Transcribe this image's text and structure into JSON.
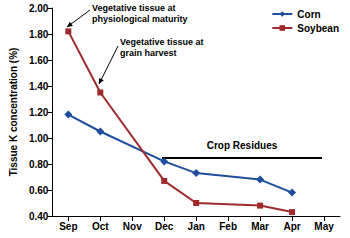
{
  "chart_data": {
    "type": "line",
    "y_label": "Tissue K concentration (%)",
    "categories": [
      "Sep",
      "Oct",
      "Nov",
      "Dec",
      "Jan",
      "Feb",
      "Mar",
      "Apr",
      "May"
    ],
    "series": [
      {
        "name": "Corn",
        "color": "#1f4e9c",
        "marker": "diamond",
        "values": [
          1.18,
          1.05,
          null,
          0.82,
          0.73,
          null,
          0.68,
          0.58,
          null
        ]
      },
      {
        "name": "Soybean",
        "color": "#9e2a2b",
        "marker": "square",
        "values": [
          1.82,
          1.35,
          null,
          0.67,
          0.5,
          null,
          0.48,
          0.43,
          null
        ]
      }
    ],
    "ylim": [
      0.4,
      2.0
    ],
    "yticks": [
      {
        "value": 0.4,
        "label": "0.40"
      },
      {
        "value": 0.6,
        "label": "0.60"
      },
      {
        "value": 0.8,
        "label": "0.80"
      },
      {
        "value": 1.0,
        "label": "1.00"
      },
      {
        "value": 1.2,
        "label": "1.20"
      },
      {
        "value": 1.4,
        "label": "1.40"
      },
      {
        "value": 1.6,
        "label": "1.60"
      },
      {
        "value": 1.8,
        "label": "1.80"
      },
      {
        "value": 2.0,
        "label": "2.00"
      }
    ],
    "annotations": [
      "Vegetative tissue at physiological maturity",
      "Vegetative tissue at grain harvest",
      "Crop Residues"
    ],
    "grid": false,
    "legend": "top-right"
  }
}
